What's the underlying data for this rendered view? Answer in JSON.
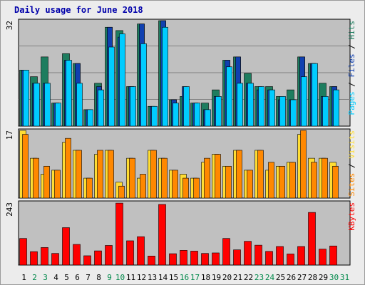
{
  "chart_data": {
    "type": "bar",
    "title": "Daily usage for June 2018",
    "categories": [
      "1",
      "2",
      "3",
      "4",
      "5",
      "6",
      "7",
      "8",
      "9",
      "10",
      "11",
      "12",
      "13",
      "14",
      "15",
      "16",
      "17",
      "18",
      "19",
      "20",
      "21",
      "22",
      "23",
      "24",
      "25",
      "26",
      "27",
      "28",
      "29",
      "30",
      "31"
    ],
    "weekend_days": [
      "2",
      "3",
      "9",
      "10",
      "16",
      "17",
      "23",
      "24",
      "30",
      "31"
    ],
    "panels": [
      {
        "id": "hits_files_pages",
        "ymax_label": "32",
        "ymax": 32,
        "side_labels": [
          "Pages",
          "Files",
          "Hits"
        ],
        "series": [
          {
            "name": "Hits",
            "color": "#1e7d5f",
            "values": [
              17,
              15,
              21,
              7,
              22,
              19,
              5,
              13,
              30,
              29,
              12,
              31,
              6,
              32,
              8,
              9,
              7,
              7,
              11,
              20,
              21,
              16,
              12,
              12,
              9,
              11,
              21,
              19,
              13,
              12,
              0
            ]
          },
          {
            "name": "Files",
            "color": "#1040b0",
            "values": [
              17,
              13,
              13,
              7,
              20,
              19,
              5,
              12,
              30,
              27,
              12,
              31,
              6,
              32,
              8,
              12,
              7,
              5,
              9,
              20,
              21,
              13,
              11,
              11,
              8,
              8,
              21,
              19,
              9,
              12,
              0
            ]
          },
          {
            "name": "Pages",
            "color": "#00ccff",
            "values": [
              17,
              13,
              13,
              7,
              20,
              13,
              5,
              11,
              24,
              28,
              12,
              25,
              6,
              30,
              7,
              12,
              7,
              5,
              9,
              18,
              13,
              13,
              12,
              11,
              9,
              8,
              15,
              19,
              9,
              11,
              0
            ]
          }
        ]
      },
      {
        "id": "visits_sites",
        "ymax_label": "17",
        "ymax": 17,
        "side_labels": [
          "Sites",
          "Visits"
        ],
        "series": [
          {
            "name": "Visits",
            "color": "#ffdd33",
            "values": [
              17,
              10,
              6,
              7,
              14,
              12,
              5,
              11,
              12,
              4,
              10,
              5,
              12,
              10,
              7,
              6,
              5,
              9,
              11,
              8,
              12,
              7,
              12,
              7,
              8,
              9,
              16,
              10,
              10,
              9,
              0
            ]
          },
          {
            "name": "Sites",
            "color": "#ff8800",
            "values": [
              16,
              10,
              8,
              7,
              15,
              12,
              5,
              12,
              12,
              3,
              10,
              6,
              12,
              10,
              7,
              5,
              5,
              10,
              11,
              8,
              12,
              7,
              12,
              9,
              8,
              9,
              17,
              9,
              10,
              8,
              0
            ]
          }
        ]
      },
      {
        "id": "kbytes",
        "ymax_label": "243",
        "ymax": 243,
        "side_labels": [
          "KBytes"
        ],
        "series": [
          {
            "name": "KBytes",
            "color": "#ff0000",
            "values": [
              103,
              52,
              68,
              45,
              145,
              80,
              36,
              55,
              76,
              240,
              94,
              110,
              35,
              235,
              44,
              57,
              54,
              45,
              47,
              103,
              59,
              92,
              77,
              53,
              72,
              43,
              72,
              204,
              62,
              74,
              0
            ]
          }
        ]
      }
    ]
  }
}
